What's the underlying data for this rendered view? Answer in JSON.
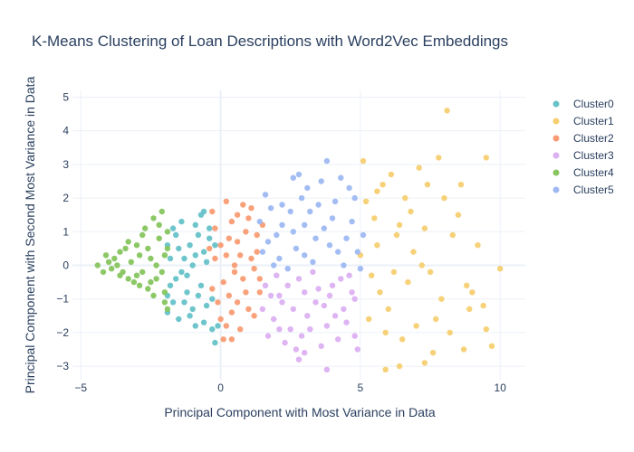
{
  "chart_data": {
    "type": "scatter",
    "title": "K-Means Clustering of Loan Descriptions with Word2Vec Embeddings",
    "xlabel": "Principal Component with Most Variance in Data",
    "ylabel": "Principal Component with Second Most Variance in Data",
    "xlim": [
      -5.3,
      10.9
    ],
    "ylim": [
      -3.4,
      5.2
    ],
    "xticks": [
      -5,
      0,
      5,
      10
    ],
    "yticks": [
      -3,
      -2,
      -1,
      0,
      1,
      2,
      3,
      4,
      5
    ],
    "grid": true,
    "legend_position": "top-right",
    "series": [
      {
        "name": "Cluster0",
        "color": "#66c2c9",
        "points": [
          [
            -1.5,
            0.5
          ],
          [
            -1.2,
            -0.3
          ],
          [
            -0.8,
            0.9
          ],
          [
            -1.9,
            -0.9
          ],
          [
            -1.0,
            -1.3
          ],
          [
            -0.5,
            0.1
          ],
          [
            -1.7,
            1.1
          ],
          [
            -0.6,
            -1.7
          ],
          [
            -1.3,
            -1.1
          ],
          [
            -1.8,
            0.2
          ],
          [
            -0.7,
            1.5
          ],
          [
            -0.3,
            -1.9
          ],
          [
            -0.2,
            -2.3
          ],
          [
            -0.9,
            -1.8
          ],
          [
            -1.6,
            -0.4
          ],
          [
            -1.1,
            0.6
          ],
          [
            -0.4,
            0.8
          ],
          [
            -1.9,
            -1.4
          ],
          [
            -0.7,
            -0.6
          ],
          [
            -1.4,
            1.3
          ],
          [
            -0.6,
            1.6
          ],
          [
            -1.0,
            0.0
          ],
          [
            -1.7,
            -1.1
          ],
          [
            -0.9,
            0.3
          ],
          [
            -0.3,
            -1.0
          ],
          [
            -1.2,
            -0.8
          ],
          [
            -1.6,
            0.9
          ],
          [
            -0.5,
            -1.2
          ],
          [
            -0.4,
            1.1
          ],
          [
            -1.3,
            0.2
          ],
          [
            -0.8,
            -0.9
          ],
          [
            -1.5,
            -1.6
          ],
          [
            -0.1,
            -1.8
          ],
          [
            -1.9,
            0.6
          ],
          [
            -0.6,
            0.4
          ],
          [
            -1.1,
            -1.5
          ],
          [
            -1.4,
            -0.2
          ],
          [
            -0.2,
            0.6
          ],
          [
            -0.9,
            1.2
          ],
          [
            -1.8,
            -0.6
          ]
        ]
      },
      {
        "name": "Cluster1",
        "color": "#f6cf71",
        "points": [
          [
            8.1,
            4.6
          ],
          [
            7.8,
            3.2
          ],
          [
            9.5,
            3.2
          ],
          [
            5.1,
            3.1
          ],
          [
            6.1,
            2.7
          ],
          [
            5.8,
            2.4
          ],
          [
            7.1,
            2.9
          ],
          [
            8.6,
            2.4
          ],
          [
            5.2,
            1.9
          ],
          [
            6.4,
            1.2
          ],
          [
            5.6,
            0.6
          ],
          [
            7.3,
            1.1
          ],
          [
            8.3,
            0.9
          ],
          [
            9.2,
            0.6
          ],
          [
            10.0,
            -0.1
          ],
          [
            8.8,
            -0.6
          ],
          [
            5.4,
            -0.3
          ],
          [
            6.7,
            -0.5
          ],
          [
            7.9,
            -1.0
          ],
          [
            6.0,
            -1.3
          ],
          [
            5.3,
            -1.6
          ],
          [
            7.0,
            -1.8
          ],
          [
            9.5,
            -1.9
          ],
          [
            9.7,
            -2.4
          ],
          [
            8.7,
            -2.5
          ],
          [
            7.6,
            -2.6
          ],
          [
            6.4,
            -3.0
          ],
          [
            5.9,
            -3.1
          ],
          [
            7.3,
            -2.9
          ],
          [
            6.9,
            0.4
          ],
          [
            5.5,
            1.4
          ],
          [
            8.0,
            2.0
          ],
          [
            6.6,
            2.0
          ],
          [
            7.5,
            -0.2
          ],
          [
            9.0,
            -0.8
          ],
          [
            5.7,
            -0.8
          ],
          [
            6.3,
            0.9
          ],
          [
            8.5,
            1.5
          ],
          [
            7.7,
            -1.6
          ],
          [
            6.5,
            -2.2
          ],
          [
            5.0,
            0.3
          ],
          [
            8.9,
            -1.3
          ],
          [
            6.8,
            1.6
          ],
          [
            7.2,
            0.0
          ],
          [
            5.6,
            2.2
          ],
          [
            9.4,
            -1.2
          ],
          [
            8.2,
            -2.0
          ],
          [
            5.9,
            -2.0
          ],
          [
            6.2,
            -0.2
          ],
          [
            7.4,
            2.4
          ]
        ]
      },
      {
        "name": "Cluster2",
        "color": "#f89c74",
        "points": [
          [
            0.2,
            1.9
          ],
          [
            0.6,
            1.5
          ],
          [
            -0.3,
            1.6
          ],
          [
            1.1,
            1.7
          ],
          [
            0.9,
            1.0
          ],
          [
            0.3,
            0.8
          ],
          [
            -0.2,
            0.2
          ],
          [
            0.5,
            0.0
          ],
          [
            1.3,
            0.4
          ],
          [
            0.1,
            -0.5
          ],
          [
            0.8,
            -0.4
          ],
          [
            1.4,
            -0.8
          ],
          [
            -0.1,
            -1.1
          ],
          [
            0.4,
            -1.4
          ],
          [
            1.0,
            -1.3
          ],
          [
            0.2,
            -1.8
          ],
          [
            0.7,
            -1.9
          ],
          [
            1.2,
            -1.5
          ],
          [
            -0.3,
            -0.7
          ],
          [
            0.0,
            0.6
          ],
          [
            0.6,
            0.7
          ],
          [
            1.5,
            1.2
          ],
          [
            1.2,
            -0.1
          ],
          [
            0.3,
            -0.9
          ],
          [
            0.9,
            -0.8
          ],
          [
            -0.2,
            1.1
          ],
          [
            0.4,
            1.3
          ],
          [
            1.3,
            0.9
          ],
          [
            0.0,
            -1.6
          ],
          [
            0.6,
            -1.1
          ],
          [
            1.1,
            0.2
          ],
          [
            0.2,
            0.3
          ],
          [
            -0.4,
            0.5
          ],
          [
            0.8,
            1.8
          ],
          [
            1.4,
            -0.4
          ],
          [
            0.5,
            -0.2
          ],
          [
            0.1,
            -2.2
          ],
          [
            0.4,
            -2.2
          ],
          [
            1.0,
            1.4
          ],
          [
            0.7,
            0.3
          ]
        ]
      },
      {
        "name": "Cluster3",
        "color": "#dcb0f2",
        "points": [
          [
            1.6,
            -0.6
          ],
          [
            2.1,
            -0.9
          ],
          [
            2.8,
            -0.4
          ],
          [
            3.4,
            -1.1
          ],
          [
            4.0,
            -0.6
          ],
          [
            4.6,
            -0.3
          ],
          [
            1.9,
            -1.6
          ],
          [
            2.5,
            -1.9
          ],
          [
            3.1,
            -1.5
          ],
          [
            3.8,
            -1.8
          ],
          [
            4.4,
            -1.3
          ],
          [
            4.8,
            -1.0
          ],
          [
            2.3,
            -2.3
          ],
          [
            3.0,
            -2.6
          ],
          [
            3.6,
            -2.4
          ],
          [
            4.2,
            -2.2
          ],
          [
            4.9,
            -2.5
          ],
          [
            3.8,
            -3.1
          ],
          [
            2.8,
            -2.8
          ],
          [
            1.7,
            -2.1
          ],
          [
            2.0,
            -0.3
          ],
          [
            2.6,
            -1.3
          ],
          [
            3.3,
            -0.2
          ],
          [
            3.9,
            -0.9
          ],
          [
            4.5,
            -1.7
          ],
          [
            1.5,
            -1.3
          ],
          [
            2.2,
            -1.1
          ],
          [
            2.9,
            -2.1
          ],
          [
            3.5,
            -0.7
          ],
          [
            4.1,
            -1.5
          ],
          [
            4.7,
            -0.8
          ],
          [
            2.4,
            -0.6
          ],
          [
            3.2,
            -1.9
          ],
          [
            1.8,
            -0.9
          ],
          [
            2.7,
            -2.5
          ],
          [
            4.3,
            -0.4
          ],
          [
            3.7,
            -1.2
          ],
          [
            2.1,
            -1.9
          ],
          [
            4.8,
            -2.1
          ],
          [
            3.0,
            -0.8
          ]
        ]
      },
      {
        "name": "Cluster5",
        "color": "#9eb9f3",
        "points": [
          [
            1.6,
            2.1
          ],
          [
            2.2,
            1.8
          ],
          [
            2.6,
            2.6
          ],
          [
            3.1,
            2.3
          ],
          [
            3.8,
            3.1
          ],
          [
            4.3,
            2.6
          ],
          [
            4.8,
            2.0
          ],
          [
            1.4,
            1.3
          ],
          [
            2.0,
            0.9
          ],
          [
            2.5,
            1.6
          ],
          [
            3.0,
            1.2
          ],
          [
            3.5,
            1.8
          ],
          [
            4.0,
            1.4
          ],
          [
            4.5,
            0.8
          ],
          [
            5.1,
            0.9
          ],
          [
            1.5,
            0.4
          ],
          [
            2.1,
            0.2
          ],
          [
            2.7,
            0.5
          ],
          [
            3.3,
            0.1
          ],
          [
            3.9,
            0.6
          ],
          [
            4.4,
            0.0
          ],
          [
            5.0,
            -0.1
          ],
          [
            2.4,
            -0.1
          ],
          [
            3.6,
            2.5
          ],
          [
            4.1,
            1.9
          ],
          [
            1.8,
            1.7
          ],
          [
            2.9,
            2.0
          ],
          [
            3.4,
            0.8
          ],
          [
            4.7,
            1.3
          ],
          [
            2.2,
            1.2
          ],
          [
            1.7,
            0.7
          ],
          [
            3.7,
            1.1
          ],
          [
            4.2,
            0.4
          ],
          [
            2.8,
            2.7
          ],
          [
            3.2,
            1.6
          ],
          [
            4.6,
            2.3
          ],
          [
            1.9,
            0.0
          ],
          [
            2.6,
            1.0
          ],
          [
            4.9,
            0.4
          ],
          [
            3.0,
            0.3
          ]
        ]
      },
      {
        "name": "Cluster4",
        "color": "#87c55f",
        "points": [
          [
            -4.4,
            0.0
          ],
          [
            -4.1,
            0.3
          ],
          [
            -3.9,
            -0.1
          ],
          [
            -3.6,
            0.4
          ],
          [
            -3.3,
            0.7
          ],
          [
            -3.0,
            -0.3
          ],
          [
            -2.8,
            0.9
          ],
          [
            -2.5,
            -0.5
          ],
          [
            -2.2,
            1.2
          ],
          [
            -2.0,
            -0.8
          ],
          [
            -2.1,
            1.6
          ],
          [
            -1.9,
            0.5
          ],
          [
            -2.3,
            0.0
          ],
          [
            -2.6,
            0.5
          ],
          [
            -2.9,
            -0.6
          ],
          [
            -3.2,
            0.1
          ],
          [
            -3.5,
            -0.2
          ],
          [
            -3.8,
            0.2
          ],
          [
            -4.2,
            -0.2
          ],
          [
            -2.4,
            -0.9
          ],
          [
            -2.7,
            1.1
          ],
          [
            -2.0,
            -1.1
          ],
          [
            -1.9,
            -1.3
          ],
          [
            -3.1,
            -0.5
          ],
          [
            -3.4,
            0.5
          ],
          [
            -2.2,
            0.8
          ],
          [
            -2.5,
            0.2
          ],
          [
            -3.7,
            0.0
          ],
          [
            -2.0,
            0.3
          ],
          [
            -2.8,
            -0.2
          ],
          [
            -3.0,
            0.6
          ],
          [
            -2.3,
            -0.4
          ],
          [
            -4.0,
            0.1
          ],
          [
            -3.3,
            -0.4
          ],
          [
            -2.1,
            -0.2
          ],
          [
            -2.6,
            -0.7
          ],
          [
            -3.6,
            -0.3
          ],
          [
            -2.4,
            1.4
          ],
          [
            -1.9,
            1.0
          ],
          [
            -2.9,
            0.3
          ]
        ]
      }
    ],
    "legend_order": [
      "Cluster0",
      "Cluster1",
      "Cluster2",
      "Cluster3",
      "Cluster4",
      "Cluster5"
    ]
  }
}
